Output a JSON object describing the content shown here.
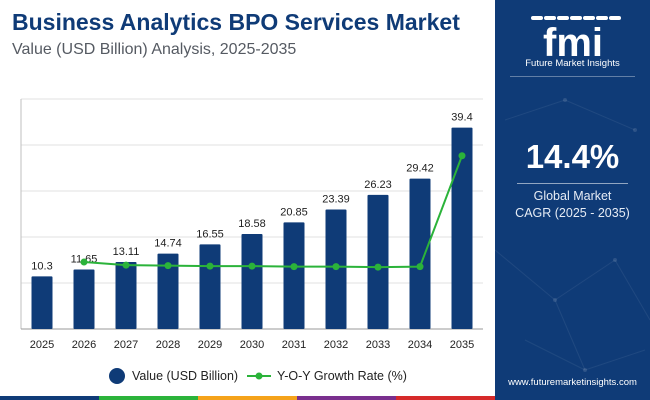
{
  "title": "Business Analytics BPO Services Market",
  "subtitle": "Value (USD Billion) Analysis, 2025-2035",
  "chart_data": {
    "type": "bar+line",
    "title": "Business Analytics BPO Services Market",
    "subtitle": "Value (USD Billion) Analysis, 2025-2035",
    "categories": [
      "2025",
      "2026",
      "2027",
      "2028",
      "2029",
      "2030",
      "2031",
      "2032",
      "2033",
      "2034",
      "2035"
    ],
    "series": [
      {
        "name": "Value (USD Billion)",
        "type": "bar",
        "color": "#0f3b77",
        "values": [
          10.3,
          11.65,
          13.11,
          14.74,
          16.55,
          18.58,
          20.85,
          23.39,
          26.23,
          29.42,
          39.4
        ],
        "labels": [
          "10.3",
          "11.65",
          "13.11",
          "14.74",
          "16.55",
          "18.58",
          "20.85",
          "23.39",
          "26.23",
          "29.42",
          "39.4"
        ]
      },
      {
        "name": "Y-O-Y Growth Rate (%)",
        "type": "line",
        "color": "#2bb33a",
        "values": [
          null,
          13.1,
          12.5,
          12.4,
          12.3,
          12.3,
          12.2,
          12.2,
          12.1,
          12.2,
          33.9
        ]
      }
    ],
    "ylim": [
      0,
      45
    ],
    "grid": true,
    "legend": "bottom"
  },
  "legend": {
    "bar_label": "Value (USD Billion)",
    "line_label": "Y-O-Y Growth Rate (%)"
  },
  "sidebar": {
    "brand": "fmi",
    "brand_sub": "Future Market Insights",
    "cagr_value": "14.4%",
    "cagr_label_1": "Global Market",
    "cagr_label_2": "CAGR (2025 - 2035)",
    "website": "www.futuremarketinsights.com"
  },
  "colors": {
    "navy": "#0f3b77",
    "green": "#2bb33a",
    "grid": "#dcdcdc",
    "bottom_bar": [
      "#0f3b77",
      "#2bb33a",
      "#f5a31a",
      "#7a2f8e",
      "#d62a2a"
    ]
  }
}
